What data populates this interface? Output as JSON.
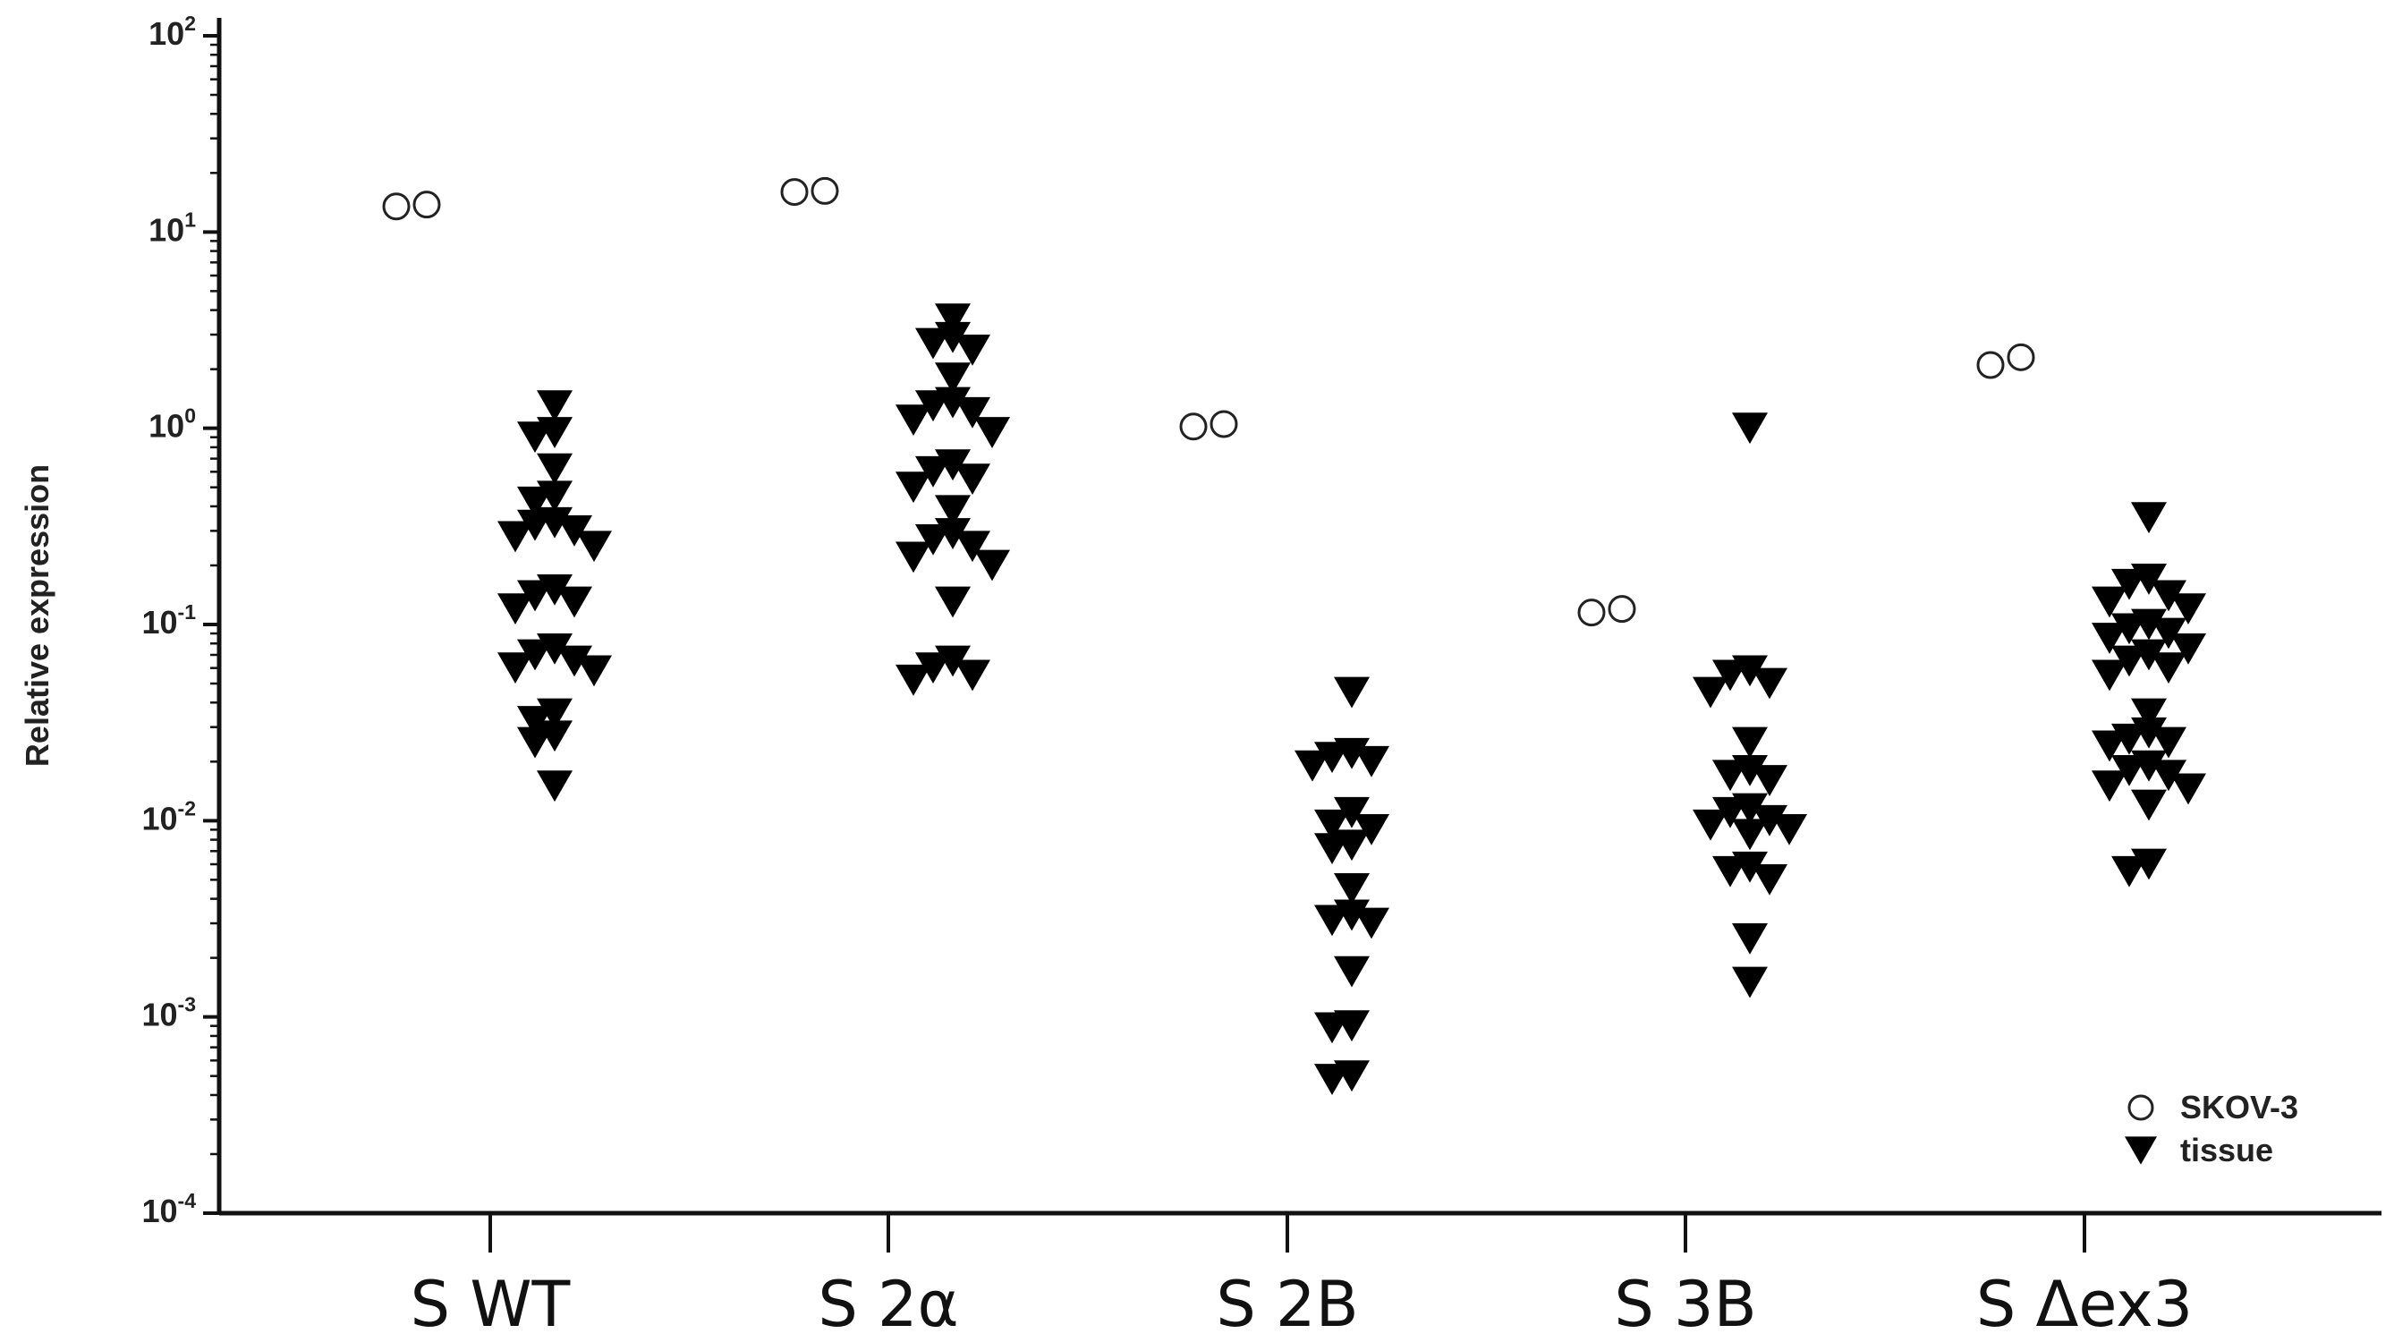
{
  "chart_data": {
    "type": "scatter",
    "title": "",
    "xlabel": "",
    "ylabel": "Relative expression",
    "yscale": "log",
    "ylim": [
      0.0001,
      100
    ],
    "y_ticks": [
      {
        "base": "10",
        "exp": "2"
      },
      {
        "base": "10",
        "exp": "1"
      },
      {
        "base": "10",
        "exp": "0"
      },
      {
        "base": "10",
        "exp": "-1"
      },
      {
        "base": "10",
        "exp": "-2"
      },
      {
        "base": "10",
        "exp": "-3"
      },
      {
        "base": "10",
        "exp": "-4"
      }
    ],
    "categories": [
      "S WT",
      "S 2α",
      "S 2B",
      "S 3B",
      "S Δex3"
    ],
    "grid": false,
    "legend_position": "bottom-right",
    "series": [
      {
        "name": "SKOV-3",
        "marker": "open-circle",
        "color": "#ffffff",
        "values": [
          [
            13.5,
            13.8
          ],
          [
            16.0,
            16.2
          ],
          [
            1.02,
            1.05
          ],
          [
            0.115,
            0.12
          ],
          [
            2.1,
            2.3
          ]
        ]
      },
      {
        "name": "tissue",
        "marker": "filled-triangle-down",
        "color": "#000000",
        "values": [
          [
            1.3,
            0.95,
            0.9,
            0.62,
            0.45,
            0.42,
            0.33,
            0.32,
            0.3,
            0.28,
            0.25,
            0.15,
            0.14,
            0.13,
            0.12,
            0.075,
            0.07,
            0.065,
            0.06,
            0.058,
            0.035,
            0.032,
            0.027,
            0.025,
            0.015
          ],
          [
            3.6,
            2.9,
            2.7,
            2.5,
            1.8,
            1.35,
            1.3,
            1.2,
            1.1,
            0.95,
            0.65,
            0.6,
            0.55,
            0.5,
            0.38,
            0.29,
            0.27,
            0.25,
            0.22,
            0.2,
            0.13,
            0.065,
            0.06,
            0.055,
            0.052
          ],
          [
            0.045,
            0.022,
            0.021,
            0.02,
            0.019,
            0.011,
            0.0095,
            0.009,
            0.0075,
            0.0072,
            0.0045,
            0.0033,
            0.0031,
            0.003,
            0.0017,
            0.0009,
            0.00088,
            0.0005,
            0.00048
          ],
          [
            1.0,
            0.058,
            0.055,
            0.05,
            0.045,
            0.025,
            0.018,
            0.017,
            0.016,
            0.0115,
            0.011,
            0.01,
            0.0095,
            0.009,
            0.0085,
            0.0058,
            0.0055,
            0.005,
            0.0025,
            0.0015
          ],
          [
            0.35,
            0.17,
            0.16,
            0.14,
            0.13,
            0.12,
            0.1,
            0.095,
            0.09,
            0.085,
            0.075,
            0.07,
            0.065,
            0.06,
            0.055,
            0.035,
            0.028,
            0.026,
            0.025,
            0.024,
            0.019,
            0.018,
            0.017,
            0.015,
            0.0145,
            0.012,
            0.006,
            0.0055
          ]
        ]
      }
    ]
  }
}
